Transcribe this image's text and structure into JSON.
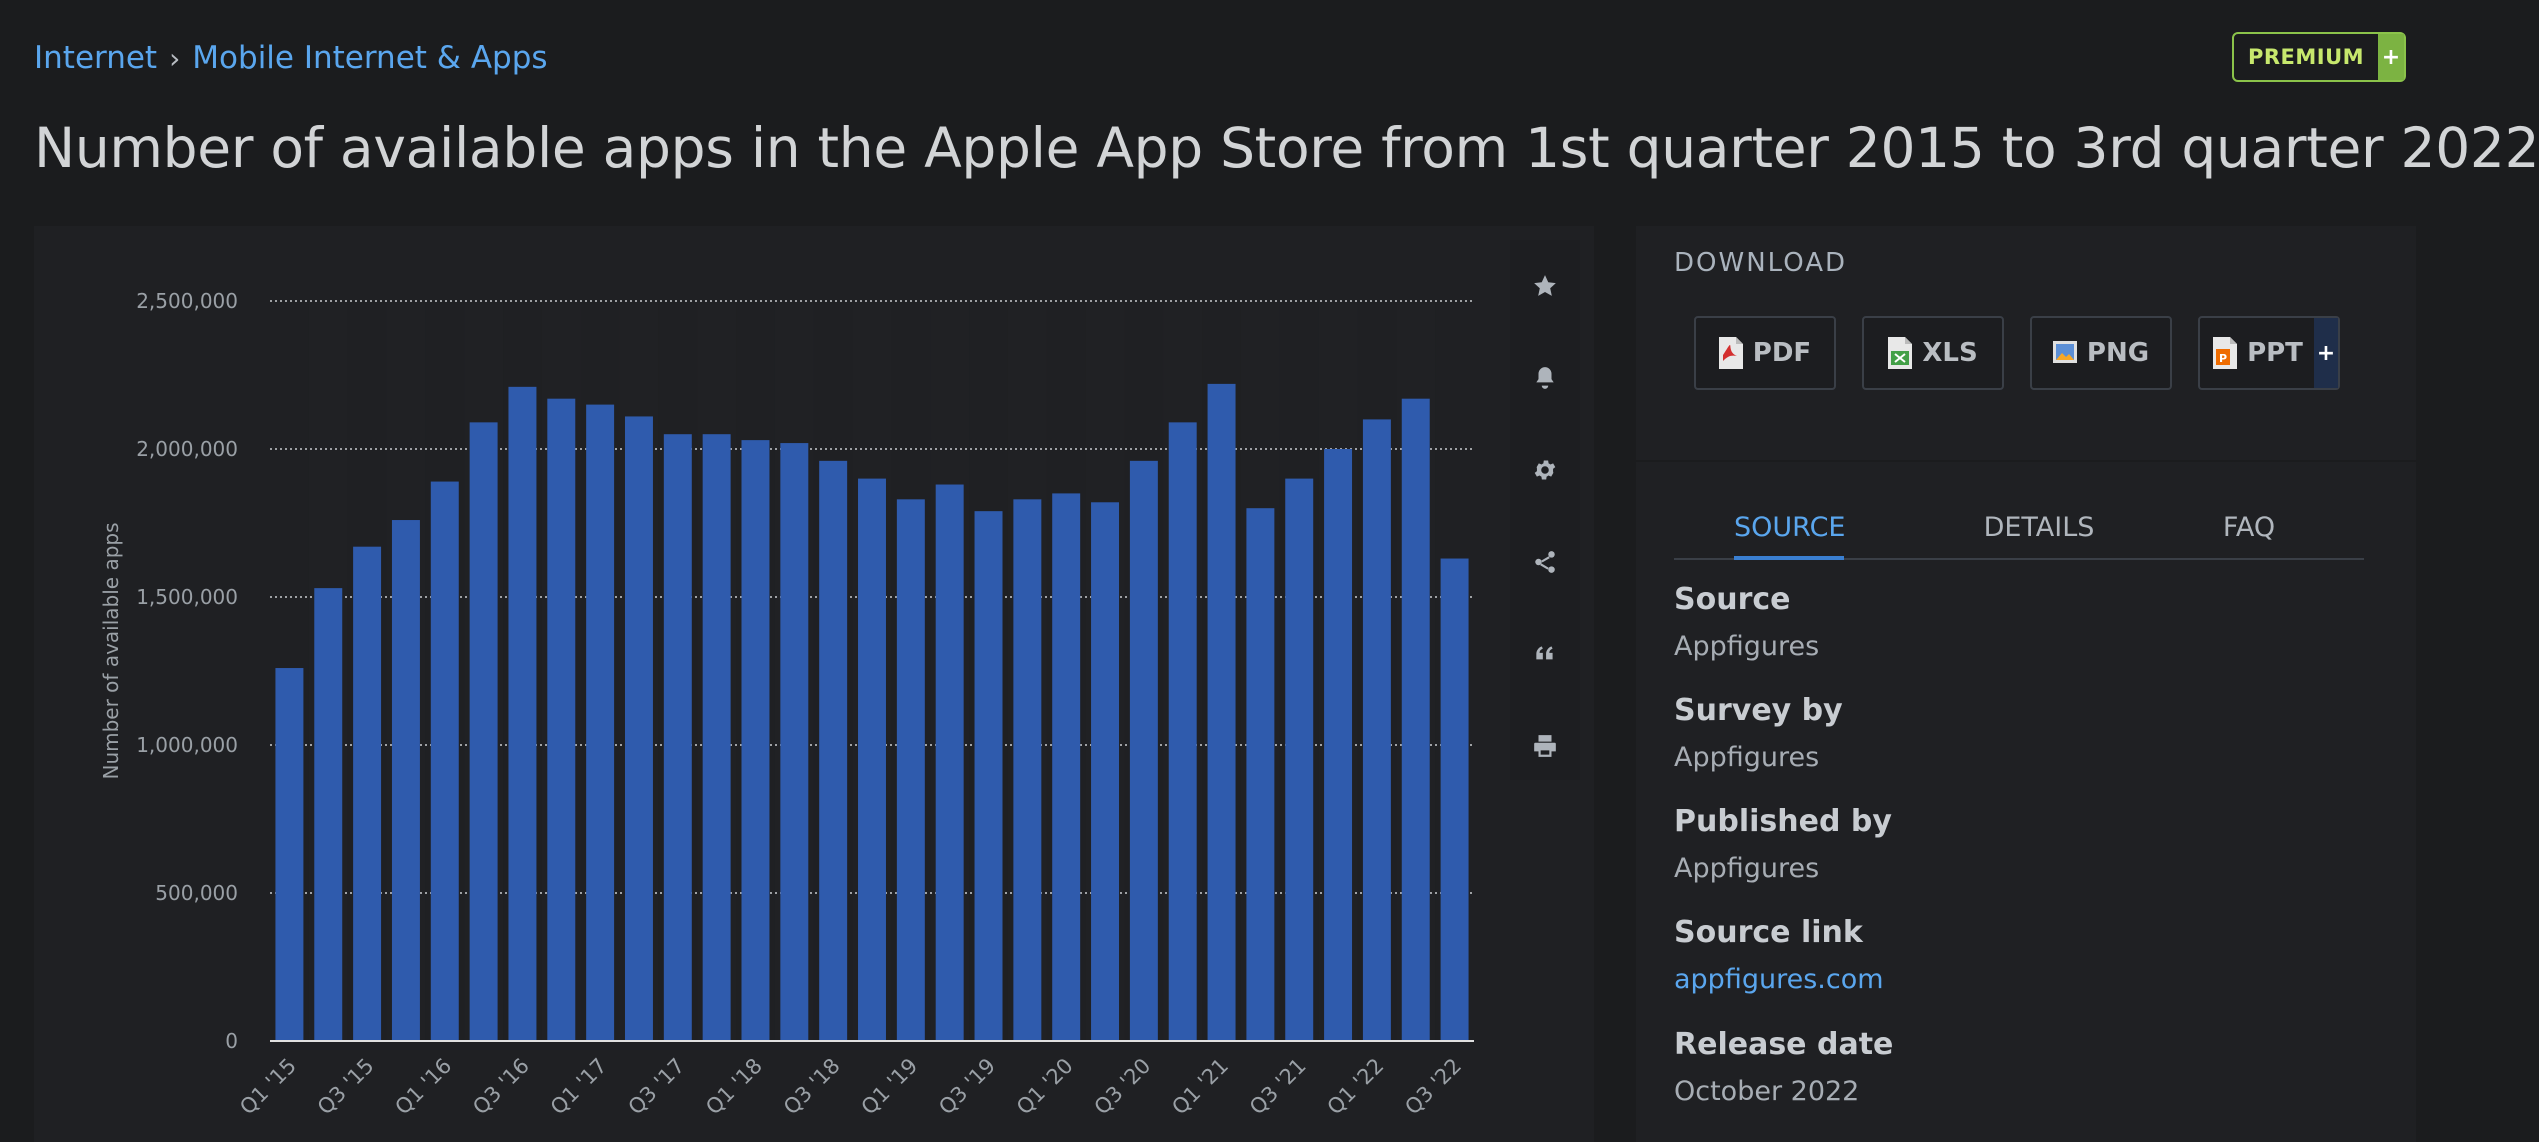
{
  "breadcrumb": {
    "items": [
      "Internet",
      "Mobile Internet & Apps"
    ],
    "separator": "›"
  },
  "premium": {
    "label": "PREMIUM",
    "plus": "+"
  },
  "title": "Number of available apps in the Apple App Store from 1st quarter 2015 to 3rd quarter 2022",
  "tools": [
    "star-icon",
    "bell-icon",
    "gear-icon",
    "share-icon",
    "quote-icon",
    "print-icon"
  ],
  "download": {
    "title": "DOWNLOAD",
    "buttons": [
      "PDF",
      "XLS",
      "PNG",
      "PPT"
    ],
    "ppt_plus": "+"
  },
  "info": {
    "tabs": [
      "SOURCE",
      "DETAILS",
      "FAQ"
    ],
    "source_label": "Source",
    "source_value": "Appfigures",
    "survey_label": "Survey by",
    "survey_value": "Appfigures",
    "published_label": "Published by",
    "published_value": "Appfigures",
    "link_label": "Source link",
    "link_value": "appfigures.com",
    "release_label": "Release date",
    "release_value": "October 2022"
  },
  "colors": {
    "bar": "#2f5bad",
    "accent": "#5aa6ee",
    "premium": "#8bc34a"
  },
  "chart_data": {
    "type": "bar",
    "ylabel": "Number of available apps",
    "ylim": [
      0,
      2500000
    ],
    "yticks": [
      0,
      500000,
      1000000,
      1500000,
      2000000,
      2500000
    ],
    "ytick_labels": [
      "0",
      "500,000",
      "1,000,000",
      "1,500,000",
      "2,000,000",
      "2,500,000"
    ],
    "grid": true,
    "categories": [
      "Q1 '15",
      "Q2 '15",
      "Q3 '15",
      "Q4 '15",
      "Q1 '16",
      "Q2 '16",
      "Q3 '16",
      "Q4 '16",
      "Q1 '17",
      "Q2 '17",
      "Q3 '17",
      "Q4 '17",
      "Q1 '18",
      "Q2 '18",
      "Q3 '18",
      "Q4 '18",
      "Q1 '19",
      "Q2 '19",
      "Q3 '19",
      "Q4 '19",
      "Q1 '20",
      "Q2 '20",
      "Q3 '20",
      "Q4 '20",
      "Q1 '21",
      "Q2 '21",
      "Q3 '21",
      "Q4 '21",
      "Q1 '22",
      "Q2 '22",
      "Q3 '22"
    ],
    "shown_tick_labels": [
      "Q1 '15",
      "Q3 '15",
      "Q1 '16",
      "Q3 '16",
      "Q1 '17",
      "Q3 '17",
      "Q1 '18",
      "Q3 '18",
      "Q1 '19",
      "Q3 '19",
      "Q1 '20",
      "Q3 '20",
      "Q1 '21",
      "Q3 '21",
      "Q1 '22",
      "Q3 '22"
    ],
    "values": [
      1260000,
      1530000,
      1670000,
      1760000,
      1890000,
      2090000,
      2210000,
      2170000,
      2150000,
      2110000,
      2050000,
      2050000,
      2030000,
      2020000,
      1960000,
      1900000,
      1830000,
      1880000,
      1790000,
      1830000,
      1850000,
      1820000,
      1960000,
      2090000,
      2220000,
      1800000,
      1900000,
      2000000,
      2100000,
      2170000,
      1630000
    ]
  }
}
